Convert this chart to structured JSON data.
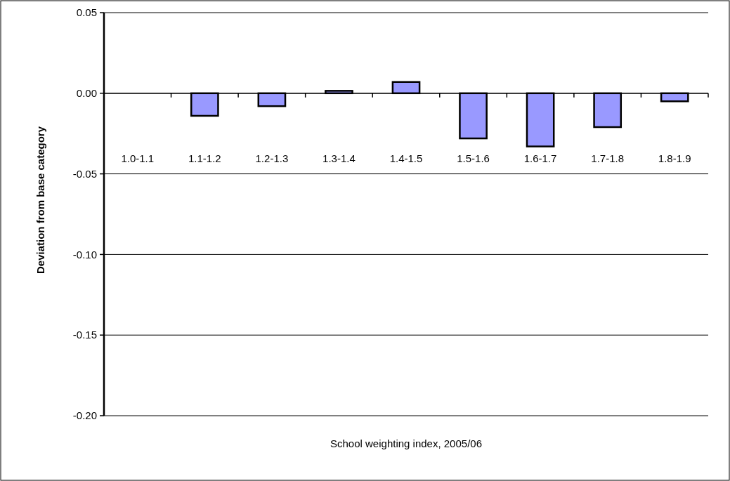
{
  "chart_data": {
    "type": "bar",
    "xlabel": "School weighting index, 2005/06",
    "ylabel": "Deviation from base category",
    "categories": [
      "1.0-1.1",
      "1.1-1.2",
      "1.2-1.3",
      "1.3-1.4",
      "1.4-1.5",
      "1.5-1.6",
      "1.6-1.7",
      "1.7-1.8",
      "1.8-1.9"
    ],
    "values": [
      0,
      -0.014,
      -0.008,
      0.0015,
      0.007,
      -0.028,
      -0.033,
      -0.021,
      -0.005
    ],
    "color": "#9999ff",
    "ylim": [
      -0.2,
      0.05
    ],
    "yticks": [
      {
        "value": -0.2,
        "label": "-0.20"
      },
      {
        "value": -0.15,
        "label": "-0.15"
      },
      {
        "value": -0.1,
        "label": "-0.10"
      },
      {
        "value": -0.05,
        "label": "-0.05"
      },
      {
        "value": 0,
        "label": "0.00"
      },
      {
        "value": 0.05,
        "label": "0.05"
      }
    ],
    "grid": "y"
  }
}
